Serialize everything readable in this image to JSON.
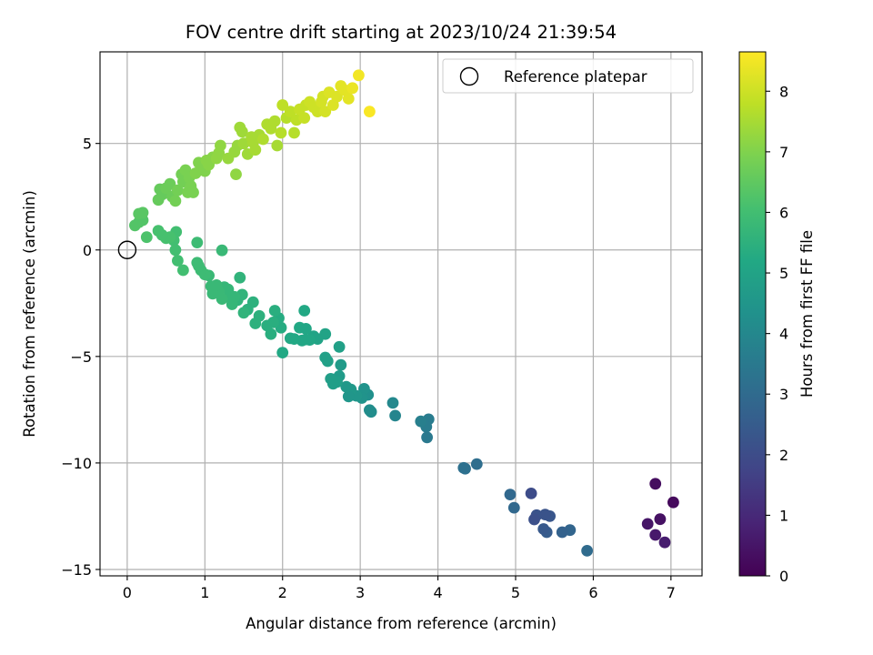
{
  "chart_data": {
    "type": "scatter",
    "title": "FOV centre drift starting at 2023/10/24 21:39:54",
    "xlabel": "Angular distance from reference (arcmin)",
    "ylabel": "Rotation from reference (arcmin)",
    "xlim": [
      -0.35,
      7.4
    ],
    "ylim": [
      -15.3,
      9.3
    ],
    "xticks": [
      0,
      1,
      2,
      3,
      4,
      5,
      6,
      7
    ],
    "yticks": [
      -15,
      -10,
      -5,
      0,
      5
    ],
    "grid": true,
    "legend": {
      "position": "top-right",
      "entries": [
        "Reference platepar"
      ]
    },
    "reference_point": {
      "x": 0,
      "y": 0,
      "label": "Reference platepar"
    },
    "colorbar": {
      "label": "Hours from first FF file",
      "colormap": "viridis",
      "range": [
        0,
        8.65
      ],
      "ticks": [
        0,
        1,
        2,
        3,
        4,
        5,
        6,
        7,
        8
      ]
    },
    "series": [
      {
        "points": [
          [
            6.8,
            -10.98,
            0.3
          ],
          [
            7.03,
            -11.85,
            0.2
          ],
          [
            6.7,
            -12.86,
            0.5
          ],
          [
            6.86,
            -12.64,
            0.4
          ],
          [
            6.8,
            -13.38,
            0.6
          ],
          [
            6.92,
            -13.73,
            0.7
          ],
          [
            5.92,
            -14.12,
            3.0
          ],
          [
            5.7,
            -13.15,
            2.8
          ],
          [
            5.6,
            -13.25,
            2.7
          ],
          [
            5.4,
            -13.25,
            2.5
          ],
          [
            5.36,
            -13.1,
            2.4
          ],
          [
            5.44,
            -12.5,
            2.3
          ],
          [
            5.38,
            -12.42,
            2.2
          ],
          [
            5.27,
            -12.45,
            2.2
          ],
          [
            5.24,
            -12.65,
            2.1
          ],
          [
            5.2,
            -11.43,
            2.0
          ],
          [
            4.98,
            -12.1,
            2.9
          ],
          [
            4.93,
            -11.48,
            2.9
          ],
          [
            4.5,
            -10.05,
            3.1
          ],
          [
            4.35,
            -10.27,
            3.2
          ],
          [
            4.33,
            -10.23,
            3.2
          ],
          [
            3.88,
            -7.95,
            3.6
          ],
          [
            3.85,
            -8.3,
            3.6
          ],
          [
            3.78,
            -8.05,
            3.7
          ],
          [
            3.86,
            -8.8,
            3.5
          ],
          [
            3.45,
            -7.78,
            3.9
          ],
          [
            3.42,
            -7.18,
            4.0
          ],
          [
            3.14,
            -7.6,
            4.2
          ],
          [
            3.12,
            -7.52,
            4.2
          ],
          [
            3.1,
            -6.8,
            4.3
          ],
          [
            3.05,
            -6.52,
            4.4
          ],
          [
            3.02,
            -6.95,
            4.4
          ],
          [
            2.95,
            -6.85,
            4.5
          ],
          [
            2.88,
            -6.55,
            4.6
          ],
          [
            2.85,
            -6.88,
            4.5
          ],
          [
            2.82,
            -6.42,
            4.6
          ],
          [
            2.75,
            -5.4,
            4.7
          ],
          [
            2.73,
            -5.92,
            4.7
          ],
          [
            2.7,
            -6.2,
            4.8
          ],
          [
            2.65,
            -6.28,
            4.8
          ],
          [
            2.62,
            -6.05,
            4.8
          ],
          [
            2.58,
            -5.22,
            4.9
          ],
          [
            2.55,
            -5.05,
            4.9
          ],
          [
            2.73,
            -4.55,
            4.9
          ],
          [
            2.55,
            -3.95,
            5.0
          ],
          [
            2.45,
            -4.18,
            5.0
          ],
          [
            2.4,
            -4.05,
            5.0
          ],
          [
            2.35,
            -4.22,
            5.1
          ],
          [
            2.3,
            -4.2,
            5.1
          ],
          [
            2.25,
            -4.25,
            5.1
          ],
          [
            2.22,
            -3.65,
            5.2
          ],
          [
            2.15,
            -4.18,
            5.2
          ],
          [
            2.1,
            -4.15,
            5.2
          ],
          [
            2.0,
            -4.82,
            5.2
          ],
          [
            2.3,
            -3.7,
            5.1
          ],
          [
            2.28,
            -2.85,
            5.2
          ],
          [
            1.98,
            -3.65,
            5.3
          ],
          [
            1.95,
            -3.2,
            5.3
          ],
          [
            1.9,
            -2.85,
            5.4
          ],
          [
            1.88,
            -3.4,
            5.4
          ],
          [
            1.85,
            -3.95,
            5.4
          ],
          [
            1.8,
            -3.55,
            5.4
          ],
          [
            1.7,
            -3.1,
            5.5
          ],
          [
            1.65,
            -3.45,
            5.5
          ],
          [
            1.62,
            -2.45,
            5.5
          ],
          [
            1.55,
            -2.8,
            5.5
          ],
          [
            1.5,
            -2.95,
            5.6
          ],
          [
            1.48,
            -2.1,
            5.6
          ],
          [
            1.45,
            -1.3,
            5.6
          ],
          [
            1.42,
            -2.35,
            5.6
          ],
          [
            1.38,
            -2.2,
            5.7
          ],
          [
            1.35,
            -2.55,
            5.7
          ],
          [
            1.32,
            -2.2,
            5.7
          ],
          [
            1.3,
            -1.85,
            5.7
          ],
          [
            1.25,
            -1.75,
            5.7
          ],
          [
            1.22,
            -2.3,
            5.8
          ],
          [
            1.18,
            -1.95,
            5.8
          ],
          [
            1.15,
            -1.65,
            5.8
          ],
          [
            1.1,
            -2.05,
            5.8
          ],
          [
            1.08,
            -1.7,
            5.8
          ],
          [
            1.05,
            -1.2,
            5.8
          ],
          [
            1.0,
            -1.15,
            5.9
          ],
          [
            0.95,
            -0.95,
            5.9
          ],
          [
            0.92,
            -0.75,
            5.9
          ],
          [
            0.9,
            -0.6,
            5.9
          ],
          [
            1.22,
            -0.02,
            5.8
          ],
          [
            0.9,
            0.35,
            5.9
          ],
          [
            0.72,
            -0.95,
            6.0
          ],
          [
            0.65,
            -0.5,
            6.0
          ],
          [
            0.62,
            0.0,
            6.0
          ],
          [
            0.63,
            0.85,
            6.0
          ],
          [
            0.6,
            0.45,
            6.0
          ],
          [
            0.55,
            0.6,
            6.1
          ],
          [
            0.5,
            0.55,
            6.1
          ],
          [
            0.45,
            0.7,
            6.1
          ],
          [
            0.4,
            0.9,
            6.1
          ],
          [
            0.25,
            0.6,
            6.2
          ],
          [
            0.2,
            1.4,
            6.3
          ],
          [
            0.15,
            1.3,
            6.3
          ],
          [
            0.1,
            1.15,
            6.3
          ],
          [
            0.15,
            1.7,
            6.4
          ],
          [
            0.2,
            1.75,
            6.4
          ],
          [
            0.4,
            2.35,
            6.6
          ],
          [
            0.45,
            2.6,
            6.6
          ],
          [
            0.42,
            2.85,
            6.6
          ],
          [
            0.5,
            2.9,
            6.7
          ],
          [
            0.55,
            3.1,
            6.7
          ],
          [
            0.58,
            2.5,
            6.7
          ],
          [
            0.62,
            2.3,
            6.8
          ],
          [
            0.65,
            2.8,
            6.8
          ],
          [
            0.7,
            3.55,
            6.8
          ],
          [
            0.72,
            3.2,
            6.8
          ],
          [
            0.75,
            3.75,
            6.9
          ],
          [
            0.78,
            2.7,
            6.9
          ],
          [
            0.8,
            3.4,
            6.9
          ],
          [
            0.82,
            3.0,
            6.9
          ],
          [
            0.85,
            2.7,
            6.9
          ],
          [
            0.88,
            3.6,
            7.0
          ],
          [
            0.92,
            4.1,
            7.0
          ],
          [
            0.95,
            3.9,
            7.0
          ],
          [
            1.0,
            3.7,
            7.0
          ],
          [
            1.02,
            4.2,
            7.1
          ],
          [
            1.05,
            4.0,
            7.1
          ],
          [
            1.1,
            4.35,
            7.1
          ],
          [
            1.15,
            4.3,
            7.2
          ],
          [
            1.18,
            4.55,
            7.2
          ],
          [
            1.2,
            4.9,
            7.2
          ],
          [
            1.3,
            4.3,
            7.3
          ],
          [
            1.38,
            4.6,
            7.3
          ],
          [
            1.4,
            3.55,
            7.2
          ],
          [
            1.42,
            4.9,
            7.3
          ],
          [
            1.45,
            5.75,
            7.4
          ],
          [
            1.48,
            5.55,
            7.4
          ],
          [
            1.5,
            5.0,
            7.4
          ],
          [
            1.55,
            4.5,
            7.4
          ],
          [
            1.6,
            5.3,
            7.5
          ],
          [
            1.62,
            5.05,
            7.5
          ],
          [
            1.65,
            4.7,
            7.5
          ],
          [
            1.7,
            5.4,
            7.5
          ],
          [
            1.75,
            5.2,
            7.6
          ],
          [
            1.8,
            5.9,
            7.6
          ],
          [
            1.85,
            5.7,
            7.6
          ],
          [
            1.9,
            6.05,
            7.6
          ],
          [
            1.93,
            4.9,
            7.5
          ],
          [
            1.98,
            5.5,
            7.7
          ],
          [
            2.0,
            6.8,
            7.8
          ],
          [
            2.05,
            6.2,
            7.7
          ],
          [
            2.1,
            6.5,
            7.8
          ],
          [
            2.15,
            5.5,
            7.7
          ],
          [
            2.18,
            6.1,
            7.8
          ],
          [
            2.22,
            6.6,
            7.9
          ],
          [
            2.28,
            6.2,
            7.9
          ],
          [
            2.3,
            6.8,
            7.9
          ],
          [
            2.35,
            6.95,
            8.0
          ],
          [
            2.4,
            6.7,
            8.0
          ],
          [
            2.45,
            6.5,
            8.0
          ],
          [
            2.5,
            6.95,
            8.1
          ],
          [
            2.52,
            7.2,
            8.1
          ],
          [
            2.55,
            6.5,
            8.1
          ],
          [
            2.6,
            7.4,
            8.2
          ],
          [
            2.65,
            6.8,
            8.2
          ],
          [
            2.7,
            7.2,
            8.2
          ],
          [
            2.75,
            7.7,
            8.3
          ],
          [
            2.8,
            7.5,
            8.3
          ],
          [
            2.85,
            7.1,
            8.3
          ],
          [
            2.9,
            7.6,
            8.4
          ],
          [
            2.98,
            8.2,
            8.5
          ],
          [
            3.12,
            6.5,
            8.6
          ]
        ]
      }
    ]
  }
}
